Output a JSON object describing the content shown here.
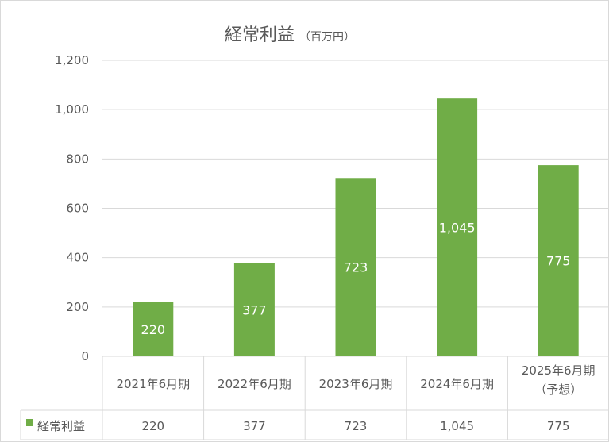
{
  "chart_data": {
    "type": "bar",
    "title": "経常利益",
    "unit": "（百万円）",
    "categories": [
      "2021年6月期",
      "2022年6月期",
      "2023年6月期",
      "2024年6月期",
      "2025年6月期（予想）"
    ],
    "category_lines": [
      [
        "2021年6月期"
      ],
      [
        "2022年6月期"
      ],
      [
        "2023年6月期"
      ],
      [
        "2024年6月期"
      ],
      [
        "2025年6月期",
        "（予想）"
      ]
    ],
    "series": [
      {
        "name": "経常利益",
        "values": [
          220,
          377,
          723,
          1045,
          775
        ],
        "labels": [
          "220",
          "377",
          "723",
          "1,045",
          "775"
        ]
      }
    ],
    "ylim": [
      0,
      1200
    ],
    "yticks": [
      0,
      200,
      400,
      600,
      800,
      1000,
      1200
    ],
    "ytick_labels": [
      "0",
      "200",
      "400",
      "600",
      "800",
      "1,000",
      "1,200"
    ],
    "grid": true,
    "data_table": true,
    "bar_color": "#70ad47",
    "grid_color": "#d9d9d9"
  }
}
